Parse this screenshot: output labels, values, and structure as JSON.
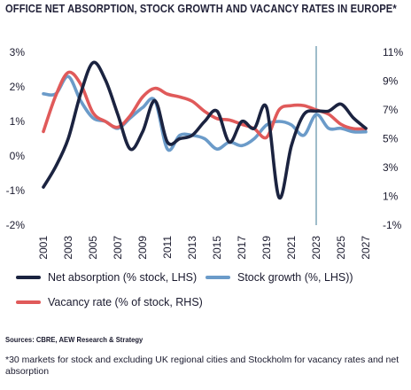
{
  "title": "OFFICE NET ABSORPTION, STOCK GROWTH AND VACANCY RATES IN EUROPE*",
  "chart_data": {
    "type": "line",
    "x": [
      2001,
      2002,
      2003,
      2004,
      2005,
      2006,
      2007,
      2008,
      2009,
      2010,
      2011,
      2012,
      2013,
      2014,
      2015,
      2016,
      2017,
      2018,
      2019,
      2020,
      2021,
      2022,
      2023,
      2024,
      2025,
      2026,
      2027
    ],
    "xtick_labels": [
      "2001",
      "2003",
      "2005",
      "2007",
      "2009",
      "2011",
      "2013",
      "2015",
      "2017",
      "2019",
      "2021",
      "2023",
      "2025",
      "2027"
    ],
    "left_axis": {
      "ylim": [
        -2,
        3
      ],
      "ticks": [
        "-2%",
        "-1%",
        "0%",
        "1%",
        "2%",
        "3%"
      ],
      "tick_values": [
        -2,
        -1,
        0,
        1,
        2,
        3
      ]
    },
    "right_axis": {
      "ylim": [
        -1,
        11
      ],
      "ticks": [
        "-1%",
        "1%",
        "3%",
        "5%",
        "7%",
        "9%",
        "11%"
      ],
      "tick_values": [
        -1,
        1,
        3,
        5,
        7,
        9,
        11
      ]
    },
    "vertical_marker": 2023,
    "series": [
      {
        "name": "Net absorption (% stock, LHS)",
        "axis": "left",
        "color": "#1b2340",
        "values": [
          -0.9,
          -0.3,
          0.5,
          1.8,
          2.7,
          2.2,
          1.2,
          0.2,
          0.7,
          1.6,
          0.4,
          0.5,
          0.6,
          1.0,
          1.3,
          0.4,
          1.0,
          0.8,
          1.4,
          -1.2,
          0.3,
          1.2,
          1.3,
          1.3,
          1.5,
          1.1,
          0.8
        ]
      },
      {
        "name": "Stock growth (%, LHS))",
        "axis": "left",
        "color": "#6b9bc9",
        "values": [
          1.8,
          1.8,
          2.3,
          1.6,
          1.1,
          1.0,
          0.8,
          1.1,
          1.4,
          1.6,
          0.2,
          0.6,
          0.6,
          0.5,
          0.2,
          0.4,
          0.3,
          0.5,
          0.9,
          1.0,
          0.9,
          0.6,
          1.2,
          0.8,
          0.8,
          0.7,
          0.7
        ]
      },
      {
        "name": "Vacancy rate (% of stock, RHS)",
        "axis": "right",
        "color": "#e05a5a",
        "values": [
          5.5,
          8.0,
          9.6,
          8.8,
          6.8,
          6.2,
          5.8,
          6.6,
          7.9,
          8.5,
          8.1,
          7.9,
          7.6,
          6.9,
          6.4,
          6.3,
          6.0,
          5.7,
          5.1,
          7.0,
          7.3,
          7.3,
          7.0,
          6.7,
          6.0,
          5.7,
          5.7
        ]
      }
    ]
  },
  "legend": {
    "net_absorption": "Net absorption (% stock, LHS)",
    "stock_growth": "Stock growth (%, LHS))",
    "vacancy_rate": "Vacancy rate (% of stock, RHS)",
    "colors": {
      "net_absorption": "#1b2340",
      "stock_growth": "#6b9bc9",
      "vacancy_rate": "#e05a5a"
    }
  },
  "sources": "Sources: CBRE, AEW Research & Strategy",
  "footnote": "*30 markets for stock and excluding UK regional cities and Stockholm for vacancy rates and net absorption"
}
